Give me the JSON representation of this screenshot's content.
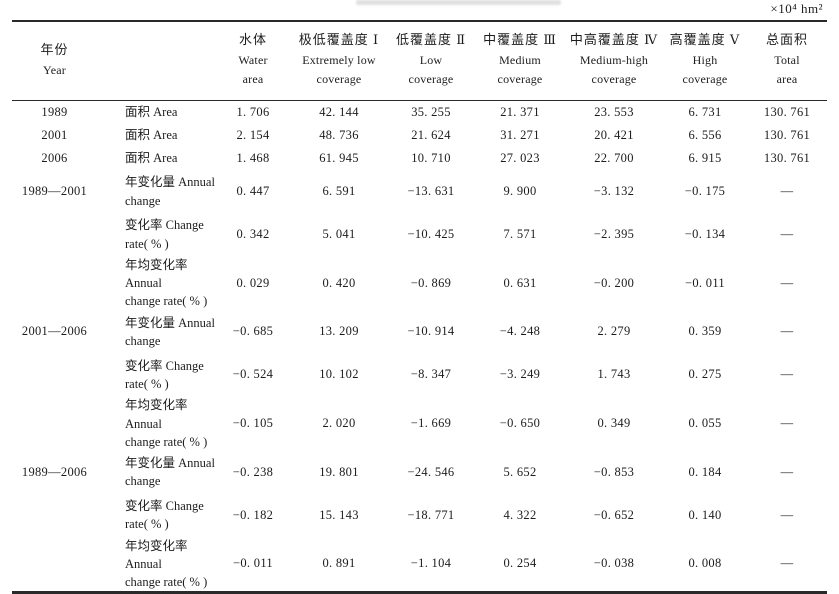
{
  "unit_label": "×10⁴ hm²",
  "table": {
    "header": {
      "year": {
        "zh": "年份",
        "en": "Year"
      },
      "cols": [
        {
          "zh": "水体",
          "en1": "Water",
          "en2": "area"
        },
        {
          "zh": "极低覆盖度 Ⅰ",
          "en1": "Extremely low",
          "en2": "coverage"
        },
        {
          "zh": "低覆盖度 Ⅱ",
          "en1": "Low",
          "en2": "coverage"
        },
        {
          "zh": "中覆盖度 Ⅲ",
          "en1": "Medium",
          "en2": "coverage"
        },
        {
          "zh": "中高覆盖度 Ⅳ",
          "en1": "Medium-high",
          "en2": "coverage"
        },
        {
          "zh": "高覆盖度 Ⅴ",
          "en1": "High",
          "en2": "coverage"
        },
        {
          "zh": "总面积",
          "en1": "Total",
          "en2": "area"
        }
      ]
    },
    "rows": [
      {
        "year": "1989",
        "label": [
          "面积 Area"
        ],
        "values": [
          "1. 706",
          "42. 144",
          "35. 255",
          "21. 371",
          "23. 553",
          "6. 731",
          "130. 761"
        ]
      },
      {
        "year": "2001",
        "label": [
          "面积 Area"
        ],
        "values": [
          "2. 154",
          "48. 736",
          "21. 624",
          "31. 271",
          "20. 421",
          "6. 556",
          "130. 761"
        ]
      },
      {
        "year": "2006",
        "label": [
          "面积 Area"
        ],
        "values": [
          "1. 468",
          "61. 945",
          "10. 710",
          "27. 023",
          "22. 700",
          "6. 915",
          "130. 761"
        ]
      },
      {
        "year": "1989—2001",
        "label": [
          "年变化量 Annual",
          "change"
        ],
        "values": [
          "0. 447",
          "6. 591",
          "−13. 631",
          "9. 900",
          "−3. 132",
          "−0. 175",
          "—"
        ]
      },
      {
        "year": "",
        "label": [
          "变化率 Change",
          "rate( % )"
        ],
        "values": [
          "0. 342",
          "5. 041",
          "−10. 425",
          "7. 571",
          "−2. 395",
          "−0. 134",
          "—"
        ]
      },
      {
        "year": "",
        "label": [
          "年均变化率 Annual",
          "change rate( % )"
        ],
        "values": [
          "0. 029",
          "0. 420",
          "−0. 869",
          "0. 631",
          "−0. 200",
          "−0. 011",
          "—"
        ]
      },
      {
        "year": "2001—2006",
        "label": [
          "年变化量 Annual",
          "change"
        ],
        "values": [
          "−0. 685",
          "13. 209",
          "−10. 914",
          "−4. 248",
          "2. 279",
          "0. 359",
          "—"
        ]
      },
      {
        "year": "",
        "label": [
          "变化率 Change",
          "rate( % )"
        ],
        "values": [
          "−0. 524",
          "10. 102",
          "−8. 347",
          "−3. 249",
          "1. 743",
          "0. 275",
          "—"
        ]
      },
      {
        "year": "",
        "label": [
          "年均变化率 Annual",
          "change rate( % )"
        ],
        "values": [
          "−0. 105",
          "2. 020",
          "−1. 669",
          "−0. 650",
          "0. 349",
          "0. 055",
          "—"
        ]
      },
      {
        "year": "1989—2006",
        "label": [
          "年变化量 Annual",
          "change"
        ],
        "values": [
          "−0. 238",
          "19. 801",
          "−24. 546",
          "5. 652",
          "−0. 853",
          "0. 184",
          "—"
        ]
      },
      {
        "year": "",
        "label": [
          "变化率 Change",
          "rate( % )"
        ],
        "values": [
          "−0. 182",
          "15. 143",
          "−18. 771",
          "4. 322",
          "−0. 652",
          "0. 140",
          "—"
        ]
      },
      {
        "year": "",
        "label": [
          "年均变化率 Annual",
          "change rate( % )"
        ],
        "values": [
          "−0. 011",
          "0. 891",
          "−1. 104",
          "0. 254",
          "−0. 038",
          "0. 008",
          "—"
        ]
      }
    ]
  }
}
